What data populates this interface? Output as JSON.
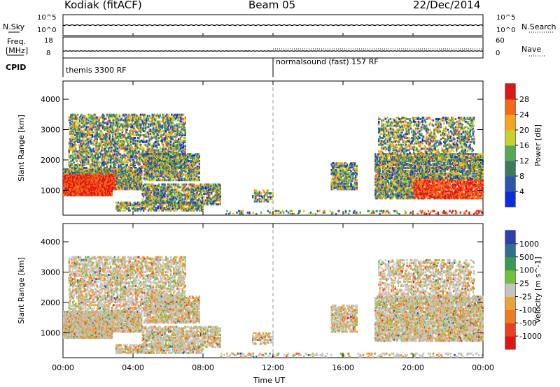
{
  "header": {
    "radar_title": "Kodiak (fitACF)",
    "beam": "Beam 05",
    "date": "22/Dec/2014"
  },
  "top_panels": {
    "nsky_label": "N.Sky",
    "nsearch_label": "N.Search",
    "nsky_ticks": [
      "10^5",
      "10^0"
    ],
    "nsearch_ticks": [
      "10^5",
      "10^0"
    ],
    "freq_label": "Freq.",
    "freq_unit": "[MHz]",
    "freq_ticks": [
      "18",
      "8"
    ],
    "nave_label": "Nave",
    "nave_ticks": [
      "60",
      "0"
    ],
    "cpid_label": "CPID",
    "cpid_segments": [
      "themis 3300 RF",
      "normalsound (fast) 157 RF"
    ]
  },
  "chart_data": [
    {
      "type": "heatmap",
      "title": "",
      "xlabel": "Time UT",
      "ylabel": "Slant Range [km]",
      "x_ticks": [
        "00:00",
        "04:00",
        "08:00",
        "12:00",
        "16:00",
        "20:00",
        "00:00"
      ],
      "y_ticks": [
        "1000",
        "2000",
        "3000",
        "4000"
      ],
      "xlim_hours": [
        0,
        24
      ],
      "ylim_km": [
        180,
        4600
      ],
      "colorbar_label": "Power [dB]",
      "colorbar_ticks": [
        "4",
        "8",
        "12",
        "16",
        "20",
        "24",
        "28"
      ],
      "colorbar_colors": [
        "#0b2be0",
        "#2c56ae",
        "#3d7a5a",
        "#56a854",
        "#c8d22a",
        "#f7a51e",
        "#f26a18",
        "#e01515"
      ],
      "grid": false
    },
    {
      "type": "heatmap",
      "title": "",
      "xlabel": "Time UT",
      "ylabel": "Slant Range [km]",
      "x_ticks": [
        "00:00",
        "04:00",
        "08:00",
        "12:00",
        "16:00",
        "20:00",
        "00:00"
      ],
      "y_ticks": [
        "1000",
        "2000",
        "3000",
        "4000"
      ],
      "xlim_hours": [
        0,
        24
      ],
      "ylim_km": [
        180,
        4600
      ],
      "colorbar_label": "Velocity [m s^-1]",
      "colorbar_ticks": [
        "1000",
        "500",
        "100",
        "25",
        "-25",
        "-100",
        "-500",
        "-1000"
      ],
      "colorbar_colors": [
        "#2c3fb3",
        "#2f6e8f",
        "#3a9a55",
        "#6fc23a",
        "#c4c4c0",
        "#e9a33d",
        "#f07b1e",
        "#e8421a",
        "#e01515"
      ],
      "grid": false
    }
  ],
  "x_axis_title": "Time UT"
}
